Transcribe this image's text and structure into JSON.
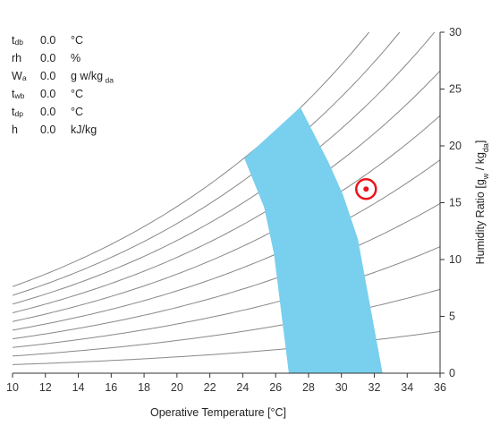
{
  "readout": [
    {
      "symbol": "t",
      "subscript": "db",
      "value": "0.0",
      "unit": "°C",
      "unit_sub": ""
    },
    {
      "symbol": "rh",
      "subscript": "",
      "value": "0.0",
      "unit": "%",
      "unit_sub": ""
    },
    {
      "symbol": "W",
      "subscript": "a",
      "value": "0.0",
      "unit": "g w/kg",
      "unit_sub": "da"
    },
    {
      "symbol": "t",
      "subscript": "wb",
      "value": "0.0",
      "unit": "°C",
      "unit_sub": ""
    },
    {
      "symbol": "t",
      "subscript": "dp",
      "value": "0.0",
      "unit": "°C",
      "unit_sub": ""
    },
    {
      "symbol": "h",
      "subscript": "",
      "value": "0.0",
      "unit": "kJ/kg",
      "unit_sub": ""
    }
  ],
  "chart_data": {
    "type": "psychrometric",
    "xlabel": "Operative Temperature [°C]",
    "ylabel": "Humidity Ratio [g_w / kg_da]",
    "xlim": [
      10,
      36
    ],
    "ylim": [
      0,
      30
    ],
    "x_ticks": [
      10,
      12,
      14,
      16,
      18,
      20,
      22,
      24,
      26,
      28,
      30,
      32,
      34,
      36
    ],
    "y_ticks": [
      0,
      5,
      10,
      15,
      20,
      25,
      30
    ],
    "rh_curves_percent": [
      10,
      20,
      30,
      40,
      50,
      60,
      70,
      80,
      90,
      100
    ],
    "comfort_zone": [
      [
        24.1,
        18.9
      ],
      [
        27.5,
        23.4
      ],
      [
        29.2,
        18.6
      ],
      [
        30.1,
        15.7
      ],
      [
        31.0,
        11.8
      ],
      [
        32.5,
        0
      ],
      [
        26.8,
        0
      ],
      [
        25.9,
        10.5
      ],
      [
        25.3,
        14.6
      ]
    ],
    "comfort_zone_color": "#79cfee",
    "marker": {
      "x": 31.5,
      "y": 16.2,
      "color": "#e8141b"
    },
    "curve_color": "#888888"
  }
}
